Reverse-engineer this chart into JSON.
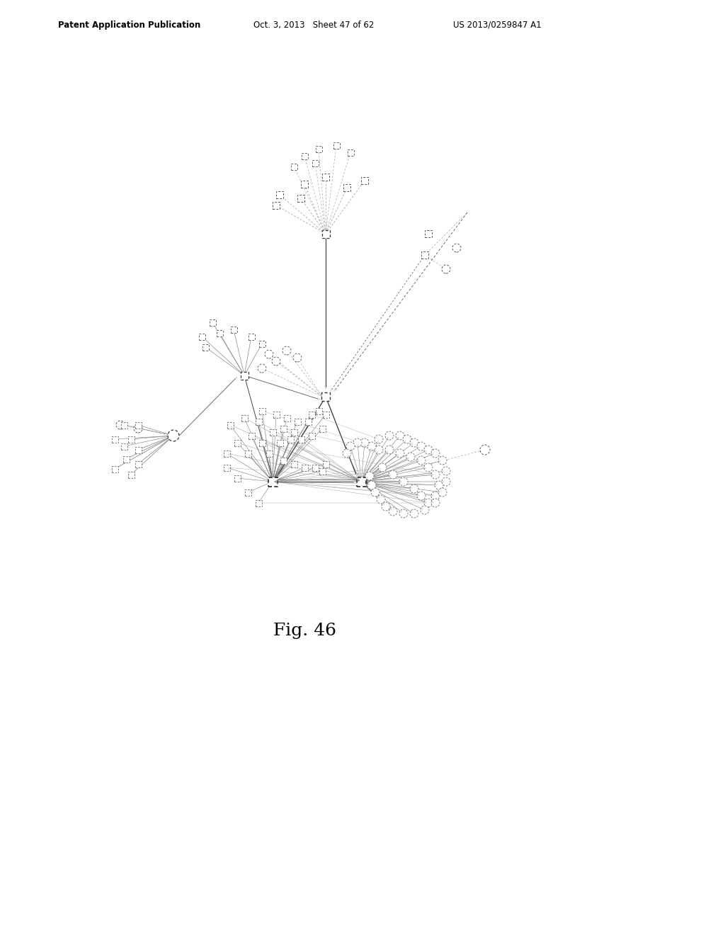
{
  "title": "Fig. 46",
  "header_left": "Patent Application Publication",
  "header_mid": "Oct. 3, 2013   Sheet 47 of 62",
  "header_right": "US 2013/0259847 A1",
  "bg_color": "#ffffff",
  "fig_width": 10.24,
  "fig_height": 13.2
}
